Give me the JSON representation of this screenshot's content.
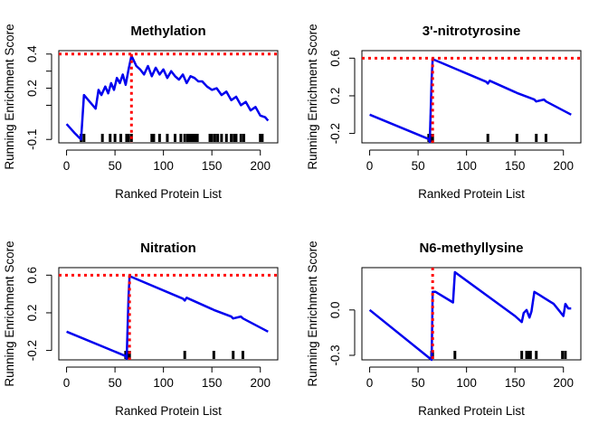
{
  "chart_data": [
    {
      "type": "line",
      "title": "Methylation",
      "xlabel": "Ranked Protein List",
      "ylabel": "Running Enrichment Score",
      "xlim": [
        0,
        210
      ],
      "ylim": [
        -0.12,
        0.42
      ],
      "xticks": [
        0,
        50,
        100,
        150,
        200
      ],
      "yticks": [
        -0.1,
        0.1,
        0.2,
        0.3,
        0.4
      ],
      "ytick_labels": [
        "-0.1",
        "",
        "0.2",
        "",
        "0.4"
      ],
      "max_score": 0.4,
      "peak_rank": 67,
      "series": [
        {
          "x": [
            0,
            8,
            15,
            18,
            21,
            24,
            30,
            33,
            36,
            40,
            43,
            46,
            49,
            52,
            55,
            58,
            61,
            64,
            67,
            72,
            76,
            80,
            84,
            88,
            92,
            96,
            100,
            104,
            108,
            112,
            116,
            120,
            124,
            128,
            132,
            136,
            140,
            145,
            150,
            155,
            160,
            165,
            170,
            175,
            180,
            185,
            190,
            195,
            200,
            205,
            208
          ],
          "y": [
            -0.01,
            -0.06,
            -0.1,
            0.16,
            0.14,
            0.12,
            0.08,
            0.19,
            0.16,
            0.21,
            0.17,
            0.23,
            0.19,
            0.26,
            0.23,
            0.28,
            0.22,
            0.31,
            0.39,
            0.33,
            0.31,
            0.28,
            0.33,
            0.27,
            0.32,
            0.28,
            0.31,
            0.26,
            0.3,
            0.27,
            0.25,
            0.28,
            0.23,
            0.27,
            0.26,
            0.24,
            0.24,
            0.21,
            0.19,
            0.2,
            0.16,
            0.18,
            0.13,
            0.15,
            0.1,
            0.12,
            0.07,
            0.09,
            0.04,
            0.03,
            0.01
          ]
        }
      ],
      "hits": [
        15,
        18,
        37,
        45,
        50,
        56,
        62,
        64,
        67,
        88,
        90,
        96,
        104,
        112,
        118,
        122,
        125,
        127,
        129,
        131,
        133,
        135,
        148,
        150,
        153,
        156,
        160,
        165,
        170,
        173,
        175,
        180,
        183,
        200,
        202
      ]
    },
    {
      "type": "line",
      "title": "3'-nitrotyrosine",
      "xlabel": "Ranked Protein List",
      "ylabel": "Running Enrichment Score",
      "xlim": [
        0,
        210
      ],
      "ylim": [
        -0.3,
        0.68
      ],
      "xticks": [
        0,
        50,
        100,
        150,
        200
      ],
      "yticks": [
        -0.2,
        0.2,
        0.6
      ],
      "ytick_labels": [
        "-0.2",
        "0.2",
        "0.6"
      ],
      "max_score": 0.6,
      "peak_rank": 65,
      "series": [
        {
          "x": [
            0,
            61,
            62,
            64,
            65,
            120,
            122,
            124,
            150,
            152,
            170,
            172,
            180,
            182,
            208
          ],
          "y": [
            0.0,
            -0.26,
            -0.29,
            0.38,
            0.59,
            0.35,
            0.33,
            0.36,
            0.24,
            0.23,
            0.16,
            0.14,
            0.16,
            0.14,
            0.0
          ]
        }
      ],
      "hits": [
        61,
        62,
        64,
        65,
        122,
        152,
        172,
        182
      ]
    },
    {
      "type": "line",
      "title": "Nitration",
      "xlabel": "Ranked Protein List",
      "ylabel": "Running Enrichment Score",
      "xlim": [
        0,
        210
      ],
      "ylim": [
        -0.3,
        0.68
      ],
      "xticks": [
        0,
        50,
        100,
        150,
        200
      ],
      "yticks": [
        -0.2,
        0.2,
        0.6
      ],
      "ytick_labels": [
        "-0.2",
        "0.2",
        "0.6"
      ],
      "max_score": 0.6,
      "peak_rank": 65,
      "series": [
        {
          "x": [
            0,
            61,
            62,
            64,
            65,
            120,
            122,
            124,
            150,
            152,
            170,
            172,
            180,
            182,
            208
          ],
          "y": [
            0.0,
            -0.26,
            -0.29,
            0.38,
            0.59,
            0.35,
            0.33,
            0.36,
            0.24,
            0.23,
            0.16,
            0.14,
            0.16,
            0.14,
            0.0
          ]
        }
      ],
      "hits": [
        61,
        62,
        64,
        65,
        122,
        152,
        172,
        182
      ]
    },
    {
      "type": "line",
      "title": "N6-methyllysine",
      "xlabel": "Ranked Protein List",
      "ylabel": "Running Enrichment Score",
      "xlim": [
        0,
        210
      ],
      "ylim": [
        -0.33,
        0.28
      ],
      "xticks": [
        0,
        50,
        100,
        150,
        200
      ],
      "yticks": [
        -0.3,
        0.0
      ],
      "ytick_labels": [
        "-0.3",
        "0.0"
      ],
      "min_score": -0.33,
      "peak_rank": 65,
      "series": [
        {
          "x": [
            0,
            64,
            65,
            68,
            86,
            88,
            150,
            157,
            159,
            162,
            165,
            167,
            170,
            175,
            180,
            185,
            190,
            195,
            200,
            202,
            205,
            208
          ],
          "y": [
            0.0,
            -0.33,
            0.12,
            0.12,
            0.05,
            0.25,
            -0.04,
            -0.08,
            -0.02,
            0.0,
            -0.05,
            -0.01,
            0.12,
            0.1,
            0.08,
            0.06,
            0.04,
            0.0,
            -0.04,
            0.04,
            0.01,
            0.01
          ]
        }
      ],
      "hits": [
        64,
        65,
        88,
        157,
        162,
        164,
        166,
        172,
        199,
        202
      ]
    }
  ]
}
